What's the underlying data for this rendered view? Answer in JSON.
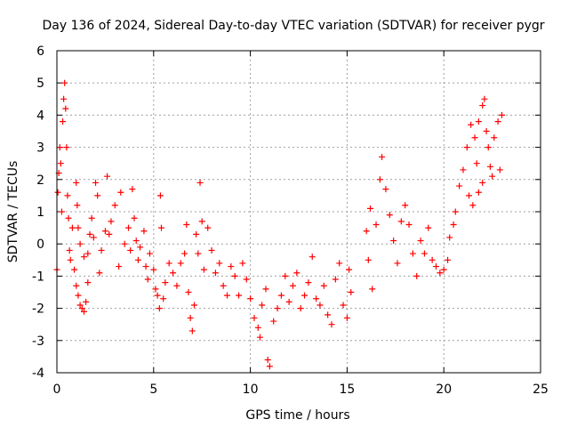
{
  "chart_data": {
    "type": "scatter",
    "title": "Day 136 of 2024, Sidereal Day-to-day VTEC variation (SDTVAR) for receiver pygr",
    "xlabel": "GPS time / hours",
    "ylabel": "SDTVAR / TECUs",
    "xlim": [
      0,
      25
    ],
    "ylim": [
      -4,
      6
    ],
    "xticks": [
      0,
      5,
      10,
      15,
      20,
      25
    ],
    "yticks": [
      -4,
      -3,
      -2,
      -1,
      0,
      1,
      2,
      3,
      4,
      5,
      6
    ],
    "grid": true,
    "marker": "+",
    "series": [
      {
        "name": "SDTVAR",
        "color": "#ff0000",
        "points": [
          [
            0.0,
            -0.8
          ],
          [
            0.05,
            1.6
          ],
          [
            0.1,
            2.2
          ],
          [
            0.15,
            3.0
          ],
          [
            0.2,
            2.5
          ],
          [
            0.25,
            1.0
          ],
          [
            0.3,
            3.8
          ],
          [
            0.35,
            4.5
          ],
          [
            0.4,
            5.0
          ],
          [
            0.45,
            4.2
          ],
          [
            0.5,
            3.0
          ],
          [
            0.55,
            1.5
          ],
          [
            0.6,
            0.8
          ],
          [
            0.65,
            -0.2
          ],
          [
            0.7,
            -0.5
          ],
          [
            0.8,
            0.5
          ],
          [
            0.9,
            -0.8
          ],
          [
            1.0,
            -1.3
          ],
          [
            1.1,
            -1.6
          ],
          [
            1.2,
            -1.9
          ],
          [
            1.3,
            -2.0
          ],
          [
            1.4,
            -2.1
          ],
          [
            1.5,
            -1.8
          ],
          [
            1.6,
            -1.2
          ],
          [
            1.0,
            1.9
          ],
          [
            1.05,
            1.2
          ],
          [
            1.1,
            0.5
          ],
          [
            1.2,
            0.0
          ],
          [
            1.4,
            -0.4
          ],
          [
            1.6,
            -0.3
          ],
          [
            1.7,
            0.3
          ],
          [
            1.8,
            0.8
          ],
          [
            1.9,
            0.2
          ],
          [
            2.0,
            1.9
          ],
          [
            2.1,
            1.5
          ],
          [
            2.2,
            -0.9
          ],
          [
            2.3,
            -0.2
          ],
          [
            2.5,
            0.4
          ],
          [
            2.6,
            2.1
          ],
          [
            2.7,
            0.3
          ],
          [
            2.8,
            0.7
          ],
          [
            3.0,
            1.2
          ],
          [
            3.2,
            -0.7
          ],
          [
            3.3,
            1.6
          ],
          [
            3.5,
            0.0
          ],
          [
            3.7,
            0.5
          ],
          [
            3.8,
            -0.2
          ],
          [
            3.9,
            1.7
          ],
          [
            4.0,
            0.8
          ],
          [
            4.1,
            0.1
          ],
          [
            4.2,
            -0.5
          ],
          [
            4.3,
            -0.1
          ],
          [
            4.5,
            0.4
          ],
          [
            4.6,
            -0.7
          ],
          [
            4.7,
            -1.1
          ],
          [
            4.8,
            -0.3
          ],
          [
            5.0,
            -0.8
          ],
          [
            5.1,
            -1.4
          ],
          [
            5.2,
            -1.6
          ],
          [
            5.3,
            -2.0
          ],
          [
            5.35,
            1.5
          ],
          [
            5.4,
            0.5
          ],
          [
            5.5,
            -1.7
          ],
          [
            5.6,
            -1.2
          ],
          [
            5.8,
            -0.6
          ],
          [
            6.0,
            -0.9
          ],
          [
            6.2,
            -1.3
          ],
          [
            6.4,
            -0.6
          ],
          [
            6.6,
            -0.3
          ],
          [
            6.7,
            0.6
          ],
          [
            6.8,
            -1.5
          ],
          [
            6.9,
            -2.3
          ],
          [
            7.0,
            -2.7
          ],
          [
            7.1,
            -1.9
          ],
          [
            7.2,
            0.3
          ],
          [
            7.3,
            -0.3
          ],
          [
            7.4,
            1.9
          ],
          [
            7.5,
            0.7
          ],
          [
            7.6,
            -0.8
          ],
          [
            7.8,
            0.5
          ],
          [
            8.0,
            -0.2
          ],
          [
            8.2,
            -0.9
          ],
          [
            8.4,
            -0.6
          ],
          [
            8.6,
            -1.3
          ],
          [
            8.8,
            -1.6
          ],
          [
            9.0,
            -0.7
          ],
          [
            9.2,
            -1.0
          ],
          [
            9.4,
            -1.6
          ],
          [
            9.6,
            -0.6
          ],
          [
            9.8,
            -1.1
          ],
          [
            10.0,
            -1.7
          ],
          [
            10.2,
            -2.3
          ],
          [
            10.4,
            -2.6
          ],
          [
            10.5,
            -2.9
          ],
          [
            10.6,
            -1.9
          ],
          [
            10.8,
            -1.4
          ],
          [
            10.9,
            -3.6
          ],
          [
            11.0,
            -3.8
          ],
          [
            11.2,
            -2.4
          ],
          [
            11.4,
            -2.0
          ],
          [
            11.6,
            -1.6
          ],
          [
            11.8,
            -1.0
          ],
          [
            12.0,
            -1.8
          ],
          [
            12.2,
            -1.3
          ],
          [
            12.4,
            -0.9
          ],
          [
            12.6,
            -2.0
          ],
          [
            12.8,
            -1.6
          ],
          [
            13.0,
            -1.2
          ],
          [
            13.2,
            -0.4
          ],
          [
            13.4,
            -1.7
          ],
          [
            13.6,
            -1.9
          ],
          [
            13.8,
            -1.3
          ],
          [
            14.0,
            -2.2
          ],
          [
            14.2,
            -2.5
          ],
          [
            14.4,
            -1.1
          ],
          [
            14.6,
            -0.6
          ],
          [
            14.8,
            -1.9
          ],
          [
            15.0,
            -2.3
          ],
          [
            15.1,
            -0.8
          ],
          [
            15.2,
            -1.5
          ],
          [
            16.0,
            0.4
          ],
          [
            16.1,
            -0.5
          ],
          [
            16.2,
            1.1
          ],
          [
            16.3,
            -1.4
          ],
          [
            16.5,
            0.6
          ],
          [
            16.7,
            2.0
          ],
          [
            16.8,
            2.7
          ],
          [
            17.0,
            1.7
          ],
          [
            17.2,
            0.9
          ],
          [
            17.4,
            0.1
          ],
          [
            17.6,
            -0.6
          ],
          [
            17.8,
            0.7
          ],
          [
            18.0,
            1.2
          ],
          [
            18.2,
            0.6
          ],
          [
            18.4,
            -0.3
          ],
          [
            18.6,
            -1.0
          ],
          [
            18.8,
            0.1
          ],
          [
            19.0,
            -0.3
          ],
          [
            19.2,
            0.5
          ],
          [
            19.4,
            -0.5
          ],
          [
            19.6,
            -0.7
          ],
          [
            19.8,
            -0.9
          ],
          [
            20.0,
            -0.8
          ],
          [
            20.2,
            -0.5
          ],
          [
            20.3,
            0.2
          ],
          [
            20.5,
            0.6
          ],
          [
            20.6,
            1.0
          ],
          [
            20.8,
            1.8
          ],
          [
            21.0,
            2.3
          ],
          [
            21.2,
            3.0
          ],
          [
            21.4,
            3.7
          ],
          [
            21.6,
            3.3
          ],
          [
            21.7,
            2.5
          ],
          [
            21.8,
            3.8
          ],
          [
            22.0,
            4.3
          ],
          [
            22.1,
            4.5
          ],
          [
            22.2,
            3.5
          ],
          [
            22.3,
            3.0
          ],
          [
            22.4,
            2.4
          ],
          [
            22.6,
            3.3
          ],
          [
            22.8,
            3.8
          ],
          [
            23.0,
            4.0
          ],
          [
            21.3,
            1.5
          ],
          [
            21.5,
            1.2
          ],
          [
            21.8,
            1.6
          ],
          [
            22.0,
            1.9
          ],
          [
            22.5,
            2.1
          ],
          [
            22.9,
            2.3
          ]
        ]
      }
    ]
  }
}
